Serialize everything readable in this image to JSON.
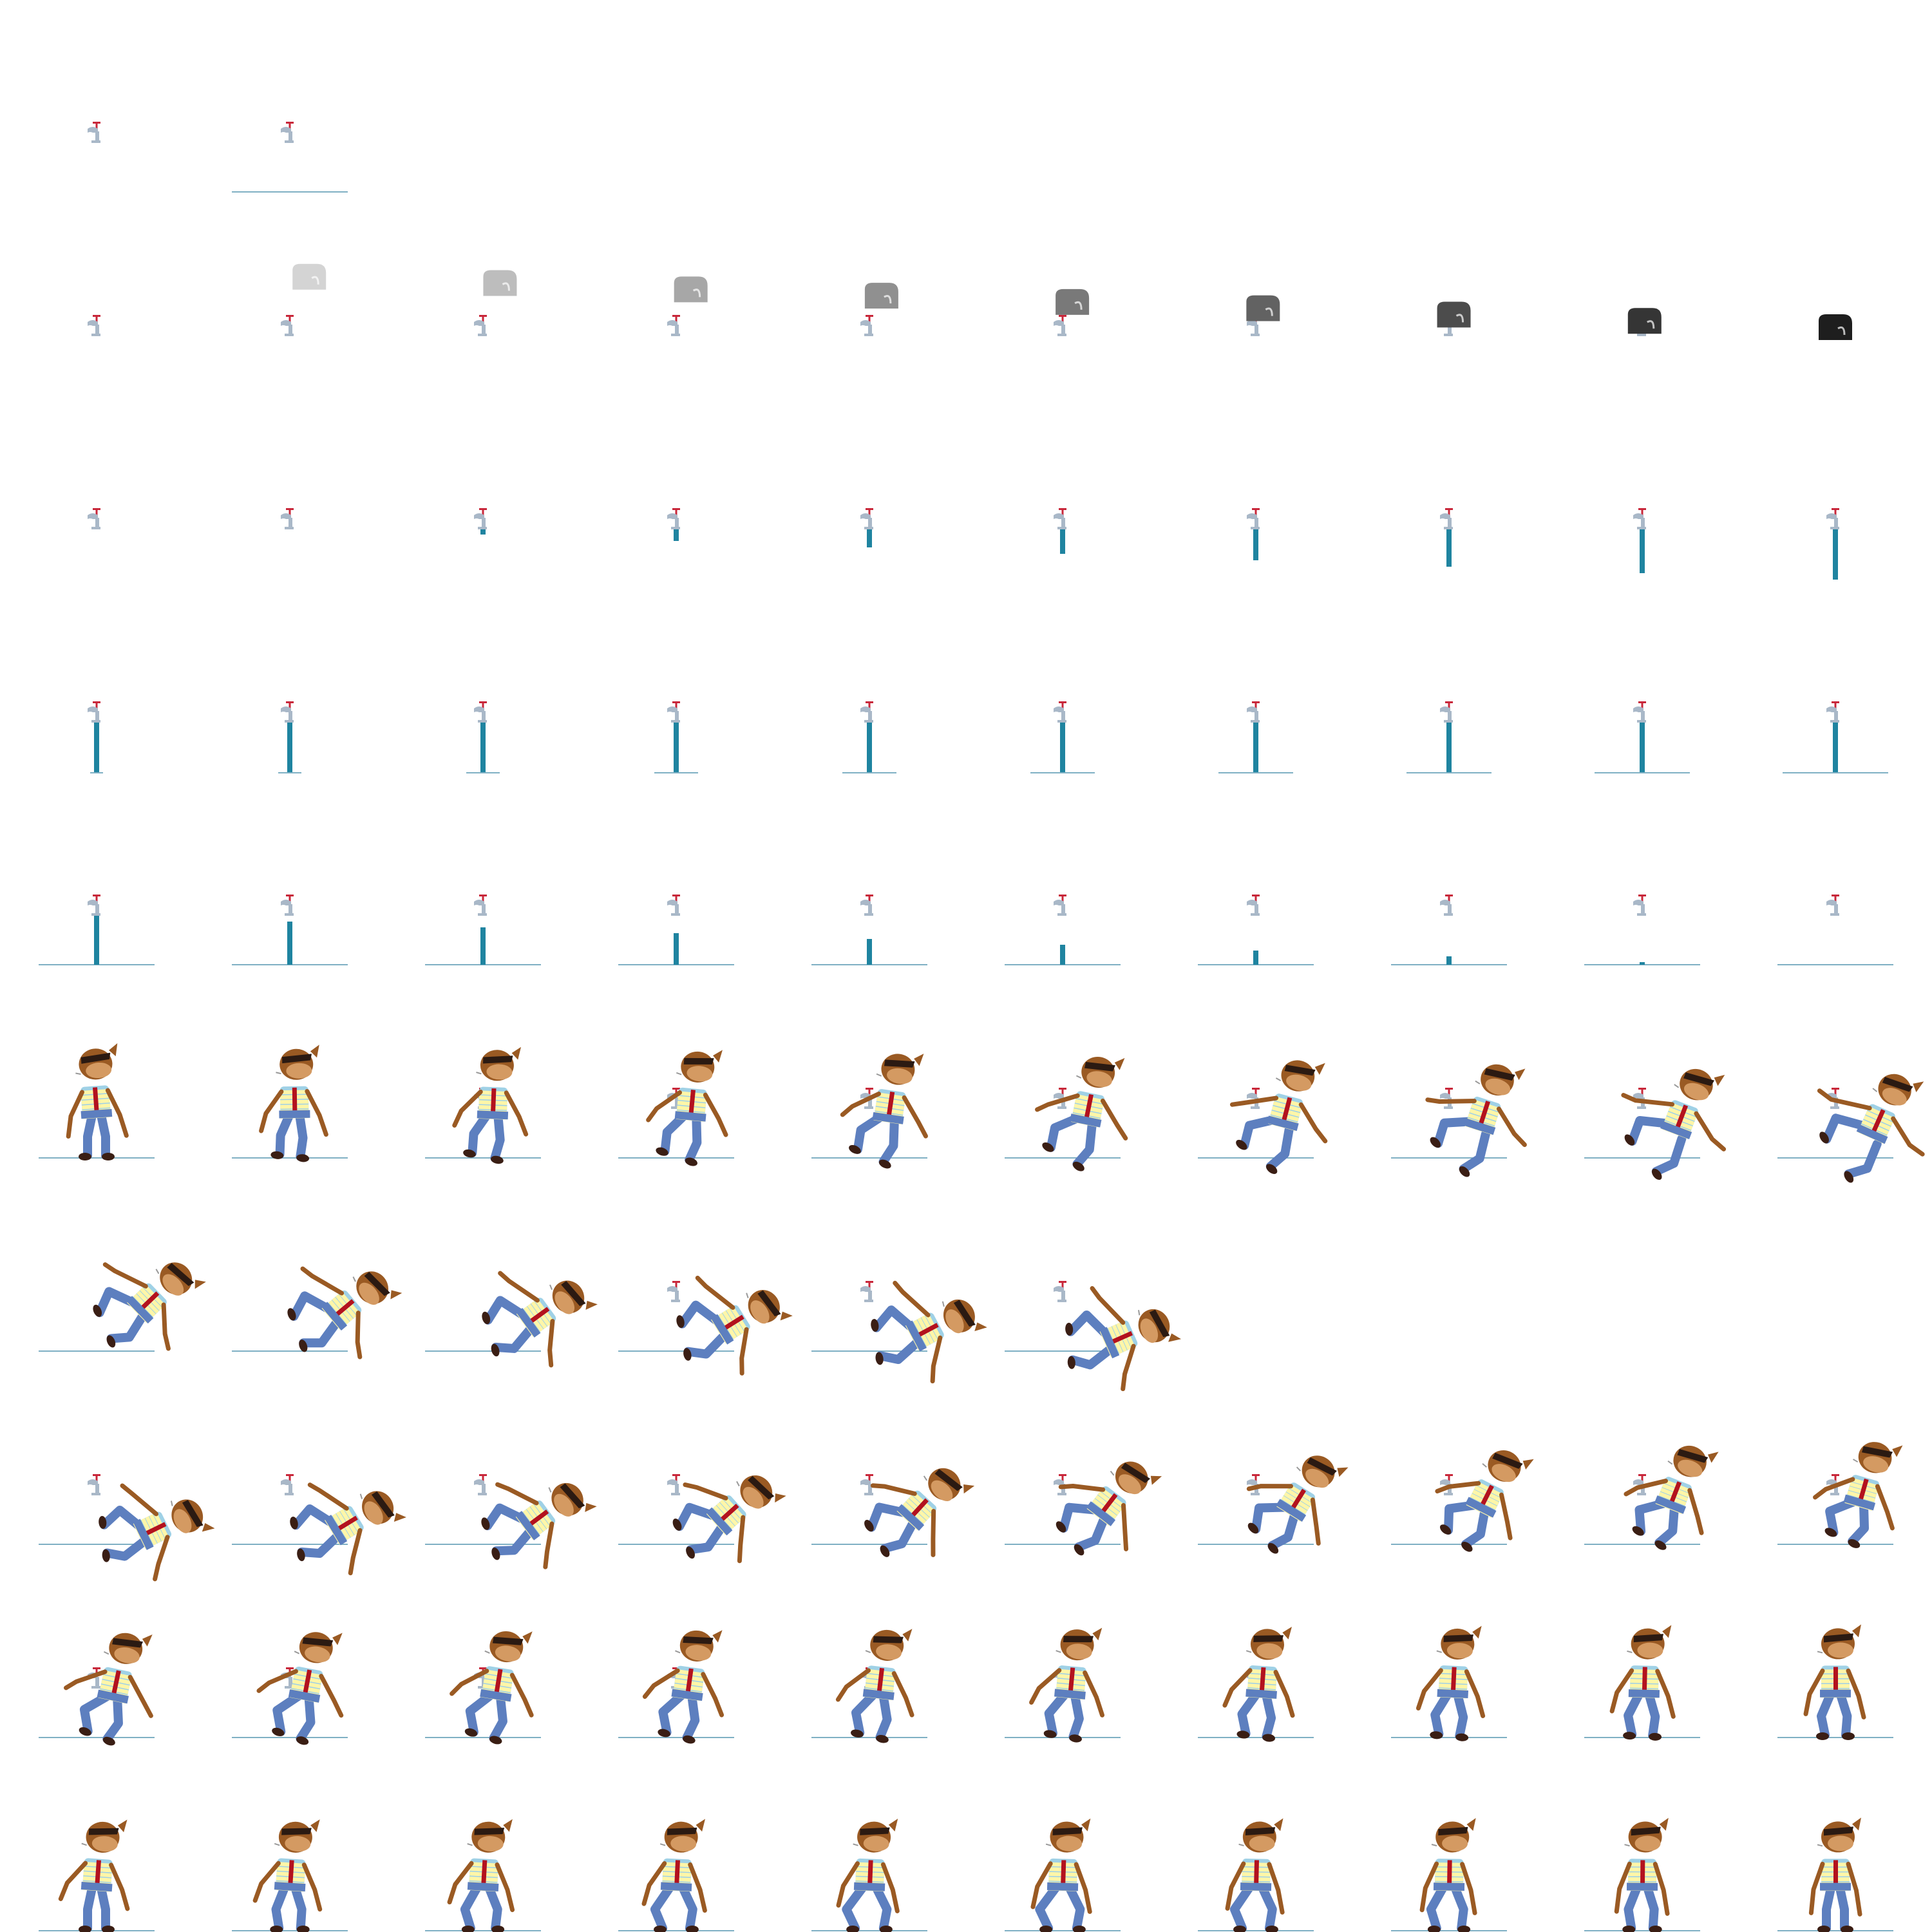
{
  "sheet": {
    "title": "",
    "columns": 10,
    "rows": 10,
    "background": "#ffffff"
  },
  "palette": {
    "ground": "#7fb0c4",
    "water": "#1f84a0",
    "water_light": "#58a9c0",
    "faucet": "#a9b8c8",
    "faucet_handle": "#c8273a",
    "skin": "#9a5a23",
    "face": "#d49a62",
    "hair": "#2b1a12",
    "pants": "#5d7fbf",
    "shirt_stripe_a": "#fff6a8",
    "shirt_stripe_b": "#9fd1e6",
    "tie": "#b3121e",
    "shoe": "#3a1e14",
    "rock_dark": "#202020"
  },
  "rows": [
    {
      "name": "faucet-idle",
      "frames": 2
    },
    {
      "name": "rock-fall",
      "frames": 10
    },
    {
      "name": "water-start",
      "frames": 10
    },
    {
      "name": "water-stream",
      "frames": 10
    },
    {
      "name": "water-stop",
      "frames": 10
    },
    {
      "name": "character-knockback",
      "frames": 10
    },
    {
      "name": "character-landing",
      "frames": 6
    },
    {
      "name": "character-getup",
      "frames": 10
    },
    {
      "name": "character-recover",
      "frames": 10
    },
    {
      "name": "character-stand",
      "frames": 10
    }
  ]
}
